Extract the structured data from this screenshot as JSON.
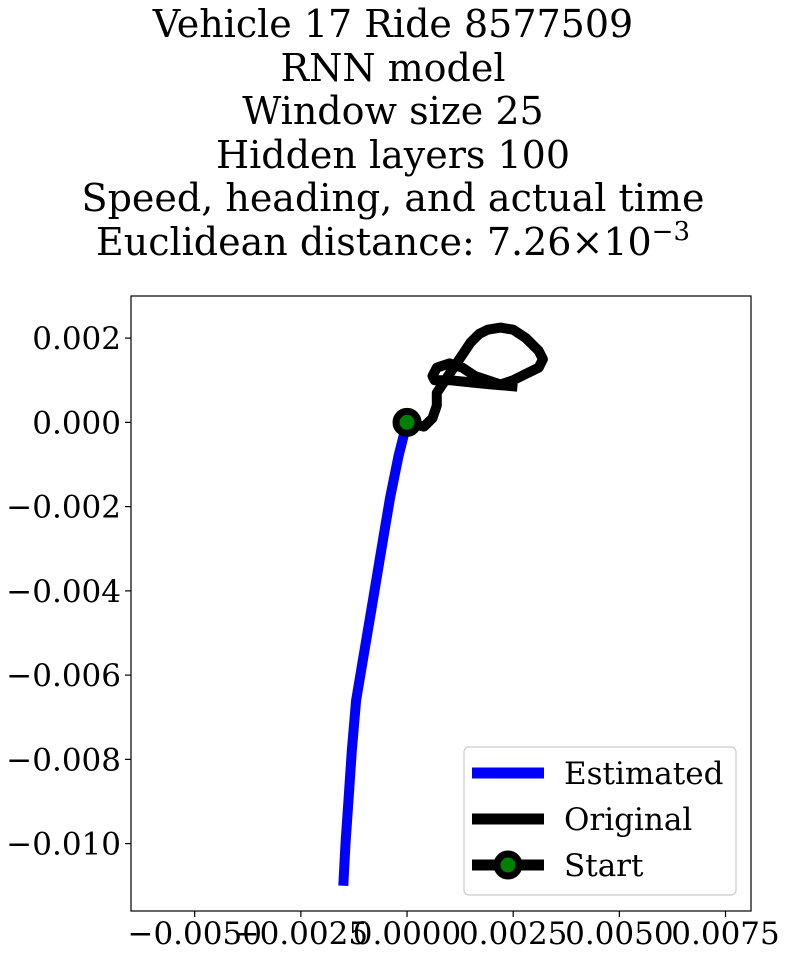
{
  "chart_data": {
    "type": "line",
    "title_lines": [
      "Vehicle 17 Ride 8577509",
      "RNN model",
      "Window size 25",
      "Hidden layers 100",
      "Speed, heading, and actual time"
    ],
    "distance_label": "Euclidean distance: 7.26",
    "distance_times": "×",
    "distance_base": "10",
    "distance_exponent": "−3",
    "xlabel": "",
    "ylabel": "",
    "xlim": [
      -0.0065,
      0.0081
    ],
    "ylim": [
      -0.0116,
      0.003
    ],
    "x_ticks": [
      -0.005,
      -0.0025,
      0.0,
      0.0025,
      0.005,
      0.0075
    ],
    "x_tick_labels": [
      "−0.0050",
      "−0.0025",
      "0.0000",
      "0.0025",
      "0.0050",
      "0.0075"
    ],
    "y_ticks": [
      0.002,
      0.0,
      -0.002,
      -0.004,
      -0.006,
      -0.008,
      -0.01
    ],
    "y_tick_labels": [
      "0.002",
      "0.000",
      "−0.002",
      "−0.004",
      "−0.006",
      "−0.008",
      "−0.010"
    ],
    "legend_position": "lower right",
    "series": [
      {
        "name": "Estimated",
        "color": "#0000ff",
        "x": [
          0.0,
          -0.0002,
          -0.0004,
          -0.0006,
          -0.0008,
          -0.001,
          -0.0012,
          -0.0013,
          -0.00138,
          -0.00145,
          -0.0015
        ],
        "y": [
          0.0,
          -0.0008,
          -0.0018,
          -0.003,
          -0.0042,
          -0.0054,
          -0.0066,
          -0.0078,
          -0.009,
          -0.01,
          -0.011
        ]
      },
      {
        "name": "Original",
        "color": "#000000",
        "x": [
          0.0,
          0.0004,
          0.0006,
          0.0007,
          0.0007,
          0.0009,
          0.0011,
          0.0013,
          0.0015,
          0.0017,
          0.0019,
          0.0022,
          0.0025,
          0.0028,
          0.0031,
          0.0032,
          0.0031,
          0.0028,
          0.0025,
          0.0022,
          0.0019,
          0.0016,
          0.0013,
          0.001,
          0.0007,
          0.0006,
          0.00065,
          0.001,
          0.0015,
          0.002,
          0.0026
        ],
        "y": [
          0.0,
          -0.0001,
          0.0001,
          0.0004,
          0.0007,
          0.001,
          0.0013,
          0.0016,
          0.0019,
          0.0021,
          0.0022,
          0.00225,
          0.0022,
          0.002,
          0.0017,
          0.0015,
          0.0013,
          0.00115,
          0.001,
          0.0009,
          0.001,
          0.0011,
          0.0013,
          0.0014,
          0.0013,
          0.0011,
          0.001,
          0.001,
          0.00095,
          0.0009,
          0.00085
        ]
      }
    ],
    "start": {
      "name": "Start",
      "x": 0.0,
      "y": 0.0,
      "marker_color": "#008000",
      "edge_color": "#000000"
    }
  }
}
